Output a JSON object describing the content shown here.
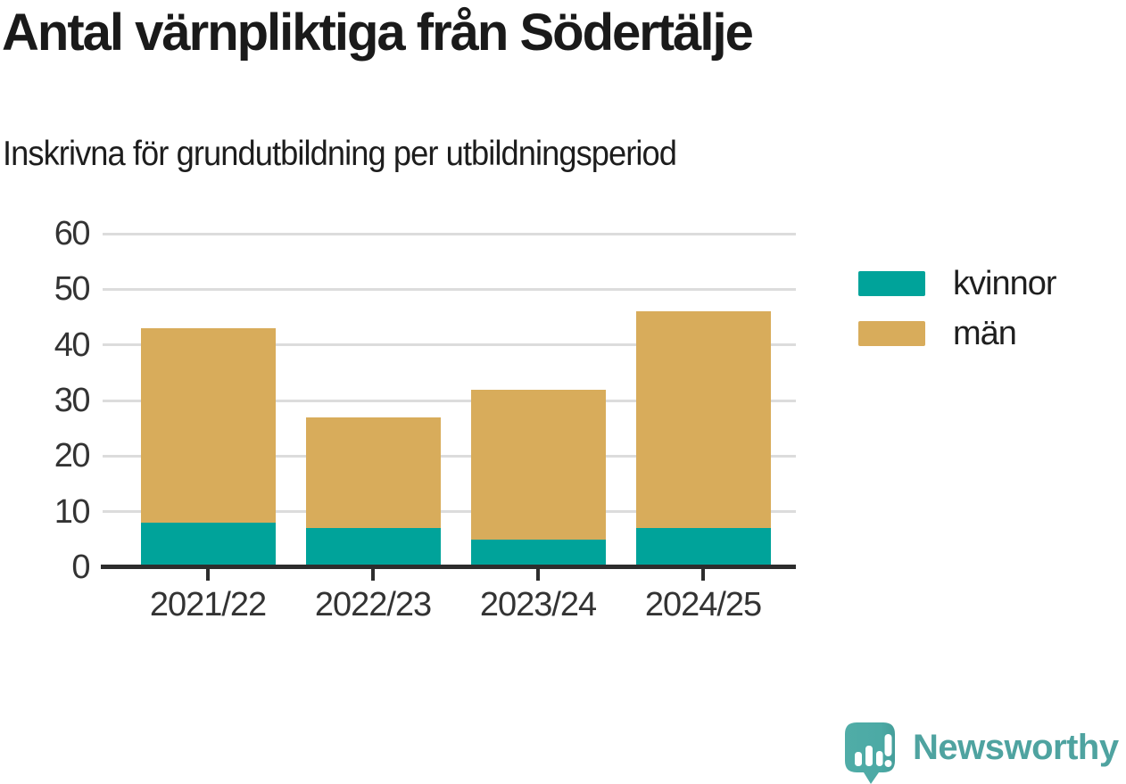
{
  "header": {
    "title": "Antal värnpliktiga från Södertälje",
    "subtitle": "Inskrivna för grundutbildning per utbildningsperiod"
  },
  "chart_data": {
    "type": "bar",
    "stacked": true,
    "title": "Antal värnpliktiga från Södertälje",
    "subtitle": "Inskrivna för grundutbildning per utbildningsperiod",
    "categories": [
      "2021/22",
      "2022/23",
      "2023/24",
      "2024/25"
    ],
    "series": [
      {
        "name": "kvinnor",
        "color": "#00a39a",
        "values": [
          8,
          7,
          5,
          7
        ]
      },
      {
        "name": "män",
        "color": "#d8ac5b",
        "values": [
          35,
          20,
          27,
          39
        ]
      }
    ],
    "stack_totals": [
      43,
      27,
      32,
      46
    ],
    "xlabel": "",
    "ylabel": "",
    "ylim": [
      0,
      60
    ],
    "yticks": [
      0,
      10,
      20,
      30,
      40,
      50,
      60
    ],
    "grid": true,
    "legend_position": "right",
    "axis_color": "#2d2d2d",
    "gridline_color": "#dcdcdc",
    "tick_label_color": "#333333"
  },
  "branding": {
    "logo_text": "Newsworthy",
    "logo_text_color": "#4fa3a0",
    "logo_bubble_color": "#4caaa5"
  }
}
